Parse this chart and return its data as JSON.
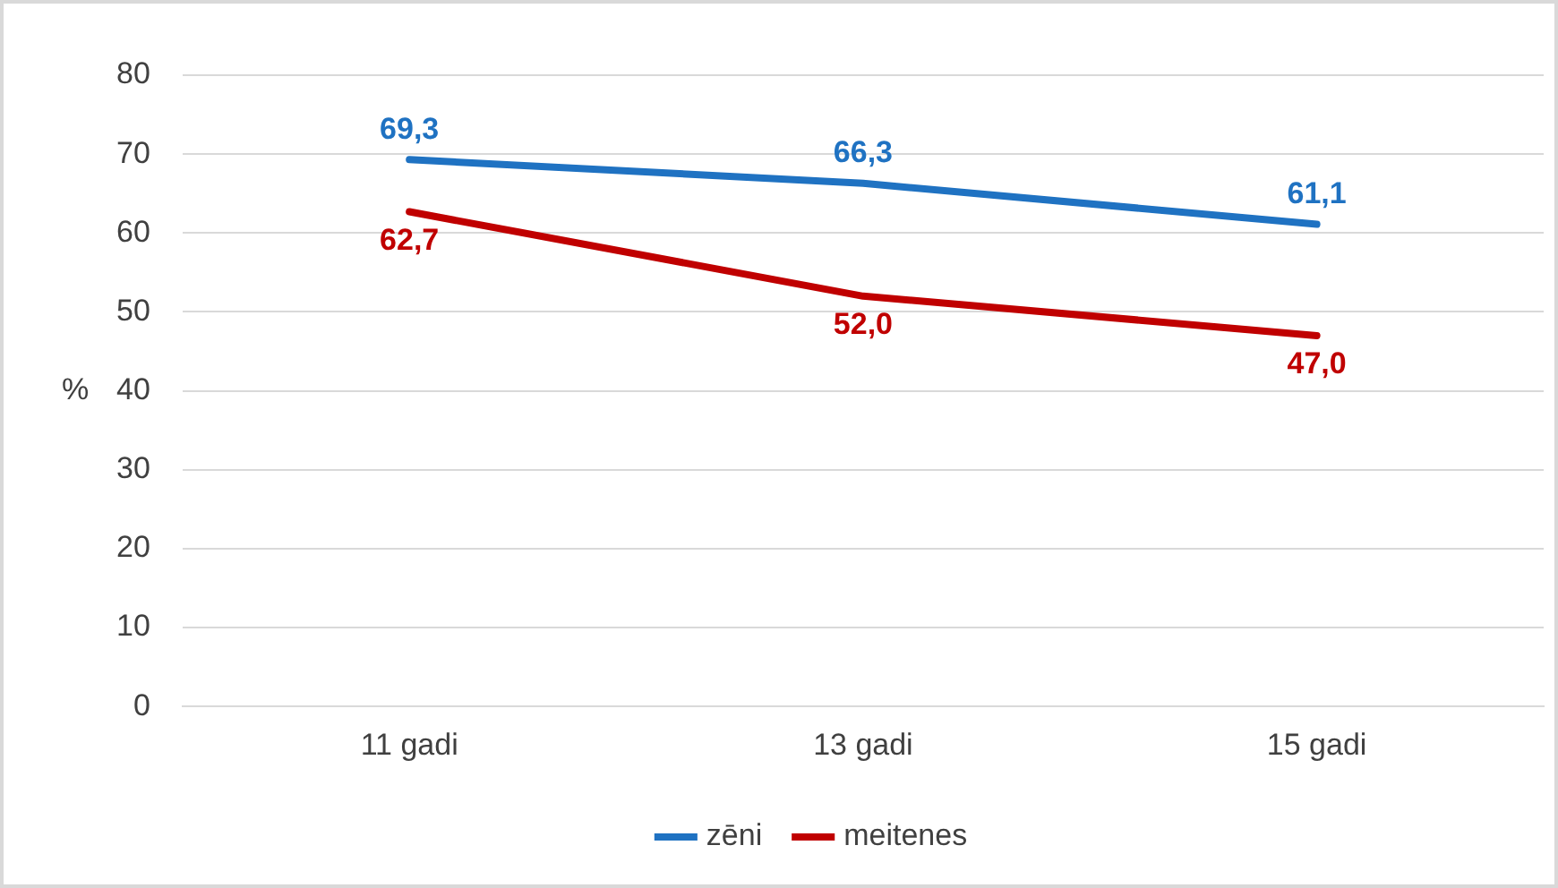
{
  "chart_data": {
    "type": "line",
    "ylabel": "%",
    "categories": [
      "11 gadi",
      "13 gadi",
      "15 gadi"
    ],
    "series": [
      {
        "name": "zēni",
        "color": "#1f72c2",
        "values": [
          69.3,
          66.3,
          61.1
        ],
        "value_labels": [
          "69,3",
          "66,3",
          "61,1"
        ]
      },
      {
        "name": "meitenes",
        "color": "#c00000",
        "values": [
          62.7,
          52.0,
          47.0
        ],
        "value_labels": [
          "62,7",
          "52,0",
          "47,0"
        ]
      }
    ],
    "ylim": [
      0,
      80
    ],
    "yticks": [
      0,
      10,
      20,
      30,
      40,
      50,
      60,
      70,
      80
    ],
    "grid": "y",
    "legend": "bottom",
    "marker": "none",
    "line_style": "solid"
  }
}
